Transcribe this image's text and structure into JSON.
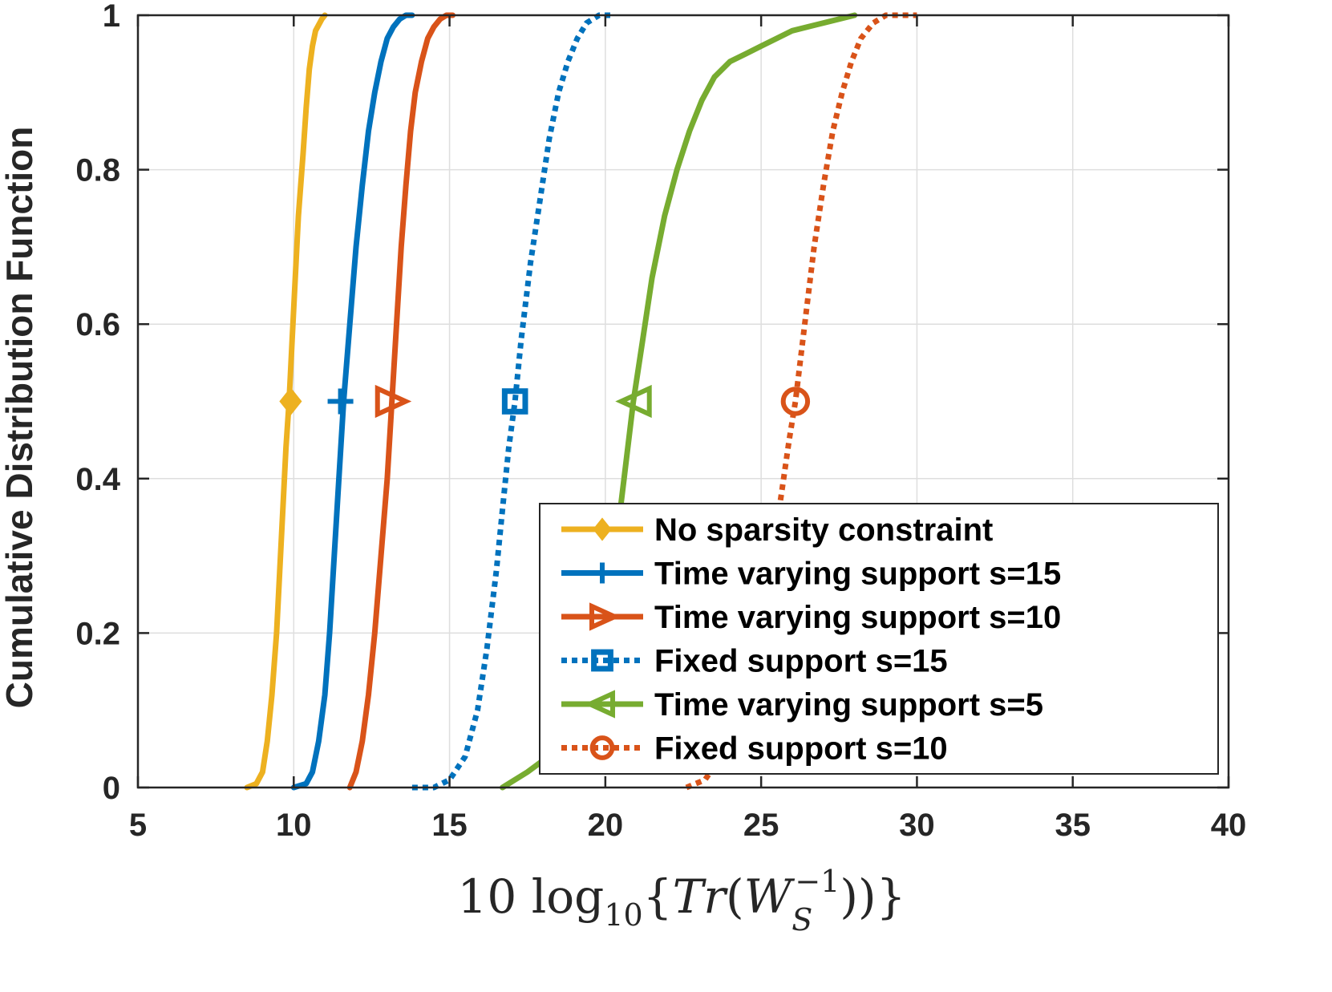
{
  "chart_data": {
    "type": "line",
    "title": "",
    "xlabel": "10 log10{Tr(W_S^-1)}",
    "ylabel": "Cumulative Distribution Function",
    "xlim": [
      5,
      40
    ],
    "ylim": [
      0,
      1
    ],
    "x_ticks": [
      "5",
      "10",
      "15",
      "20",
      "25",
      "30",
      "35",
      "40"
    ],
    "y_ticks": [
      "0",
      "0.2",
      "0.4",
      "0.6",
      "0.8",
      "1"
    ],
    "grid": true,
    "legend_position": "bottom-right",
    "series": [
      {
        "name": "No sparsity constraint",
        "color": "#EDB120",
        "line_style": "solid",
        "marker": "diamond",
        "marker_point": [
          9.9,
          0.5
        ],
        "x": [
          8.5,
          8.8,
          9.0,
          9.15,
          9.3,
          9.45,
          9.55,
          9.65,
          9.75,
          9.85,
          9.95,
          10.05,
          10.15,
          10.3,
          10.4,
          10.5,
          10.6,
          10.7,
          10.9,
          11.0
        ],
        "y": [
          0,
          0.005,
          0.02,
          0.06,
          0.12,
          0.2,
          0.28,
          0.36,
          0.44,
          0.5,
          0.58,
          0.66,
          0.74,
          0.82,
          0.88,
          0.93,
          0.96,
          0.98,
          0.995,
          1.0
        ]
      },
      {
        "name": "Time varying support s=15",
        "color": "#0072BD",
        "line_style": "solid",
        "marker": "plus",
        "marker_point": [
          11.5,
          0.5
        ],
        "x": [
          10.0,
          10.4,
          10.6,
          10.8,
          11.0,
          11.15,
          11.3,
          11.45,
          11.6,
          11.8,
          12.0,
          12.2,
          12.4,
          12.6,
          12.8,
          13.0,
          13.2,
          13.4,
          13.6,
          13.8
        ],
        "y": [
          0,
          0.005,
          0.02,
          0.06,
          0.12,
          0.2,
          0.3,
          0.4,
          0.5,
          0.6,
          0.7,
          0.78,
          0.85,
          0.9,
          0.94,
          0.97,
          0.985,
          0.995,
          1.0,
          1.0
        ]
      },
      {
        "name": "Time varying support s=10",
        "color": "#D95319",
        "line_style": "solid",
        "marker": "triangle-right",
        "marker_point": [
          13.1,
          0.5
        ],
        "x": [
          11.8,
          12.0,
          12.2,
          12.4,
          12.6,
          12.8,
          13.0,
          13.15,
          13.3,
          13.45,
          13.6,
          13.75,
          13.9,
          14.1,
          14.3,
          14.5,
          14.7,
          14.9,
          15.1
        ],
        "y": [
          0,
          0.02,
          0.06,
          0.12,
          0.2,
          0.3,
          0.4,
          0.5,
          0.6,
          0.7,
          0.78,
          0.85,
          0.9,
          0.94,
          0.97,
          0.985,
          0.995,
          1.0,
          1.0
        ]
      },
      {
        "name": "Fixed support s=15",
        "color": "#0072BD",
        "line_style": "dotted",
        "marker": "square",
        "marker_point": [
          17.1,
          0.5
        ],
        "x": [
          13.8,
          14.5,
          15.0,
          15.5,
          15.9,
          16.2,
          16.5,
          16.7,
          16.9,
          17.1,
          17.3,
          17.6,
          17.9,
          18.2,
          18.5,
          18.8,
          19.1,
          19.4,
          19.8,
          20.2
        ],
        "y": [
          0,
          0.0,
          0.01,
          0.04,
          0.1,
          0.18,
          0.28,
          0.36,
          0.44,
          0.5,
          0.58,
          0.68,
          0.76,
          0.84,
          0.9,
          0.94,
          0.97,
          0.99,
          1.0,
          1.0
        ]
      },
      {
        "name": "Time varying support s=5",
        "color": "#77AC30",
        "line_style": "solid",
        "marker": "triangle-left",
        "marker_point": [
          21.0,
          0.5
        ],
        "x": [
          16.7,
          17.5,
          18.5,
          19.3,
          19.9,
          20.3,
          20.6,
          20.9,
          21.2,
          21.5,
          21.9,
          22.3,
          22.7,
          23.1,
          23.5,
          24.0,
          24.5,
          25.0,
          25.5,
          26.0,
          27.0,
          28.0
        ],
        "y": [
          0,
          0.02,
          0.05,
          0.1,
          0.18,
          0.3,
          0.4,
          0.5,
          0.58,
          0.66,
          0.74,
          0.8,
          0.85,
          0.89,
          0.92,
          0.94,
          0.95,
          0.96,
          0.97,
          0.98,
          0.99,
          1.0
        ]
      },
      {
        "name": "Fixed support s=10",
        "color": "#D95319",
        "line_style": "dotted",
        "marker": "circle",
        "marker_point": [
          26.1,
          0.5
        ],
        "x": [
          22.6,
          23.2,
          23.7,
          24.2,
          24.6,
          25.0,
          25.35,
          25.65,
          25.9,
          26.1,
          26.4,
          26.7,
          27.0,
          27.3,
          27.6,
          27.9,
          28.2,
          28.6,
          29.0,
          29.5,
          30.0
        ],
        "y": [
          0,
          0.01,
          0.04,
          0.08,
          0.14,
          0.22,
          0.3,
          0.38,
          0.45,
          0.5,
          0.6,
          0.7,
          0.78,
          0.85,
          0.9,
          0.94,
          0.97,
          0.99,
          1.0,
          1.0,
          1.0
        ]
      }
    ]
  }
}
